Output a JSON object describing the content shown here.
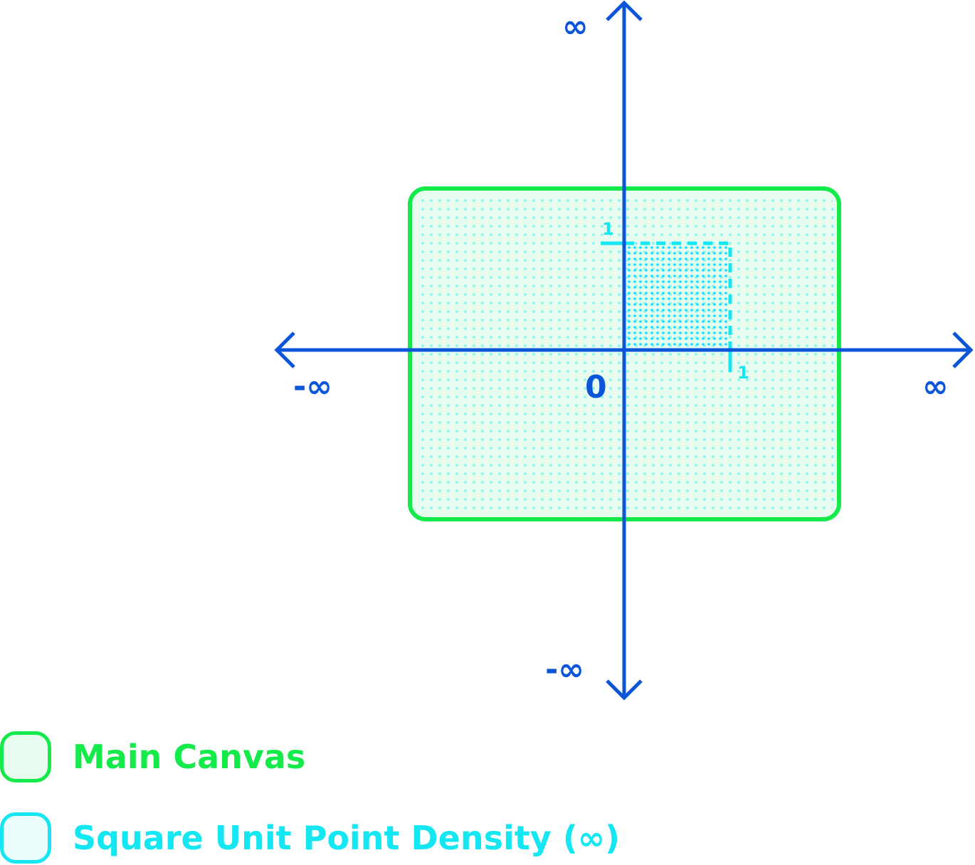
{
  "colors": {
    "axis": "#0a55d8",
    "canvas_stroke": "#14ea4a",
    "canvas_fill": "#e8fbef",
    "density": "#14e6f2",
    "density_fill": "#ebfcfd",
    "background": "#ffffff"
  },
  "diagram": {
    "axes": {
      "x_negative_label": "-∞",
      "x_positive_label": "∞",
      "y_positive_label": "∞",
      "y_negative_label": "-∞",
      "origin_label": "0"
    },
    "unit_square": {
      "x_unit_label": "1",
      "y_unit_label": "1"
    }
  },
  "legend": {
    "items": [
      {
        "label": "Main Canvas",
        "color_key": "canvas"
      },
      {
        "label": "Square Unit Point Density (∞)",
        "color_key": "density"
      }
    ]
  }
}
